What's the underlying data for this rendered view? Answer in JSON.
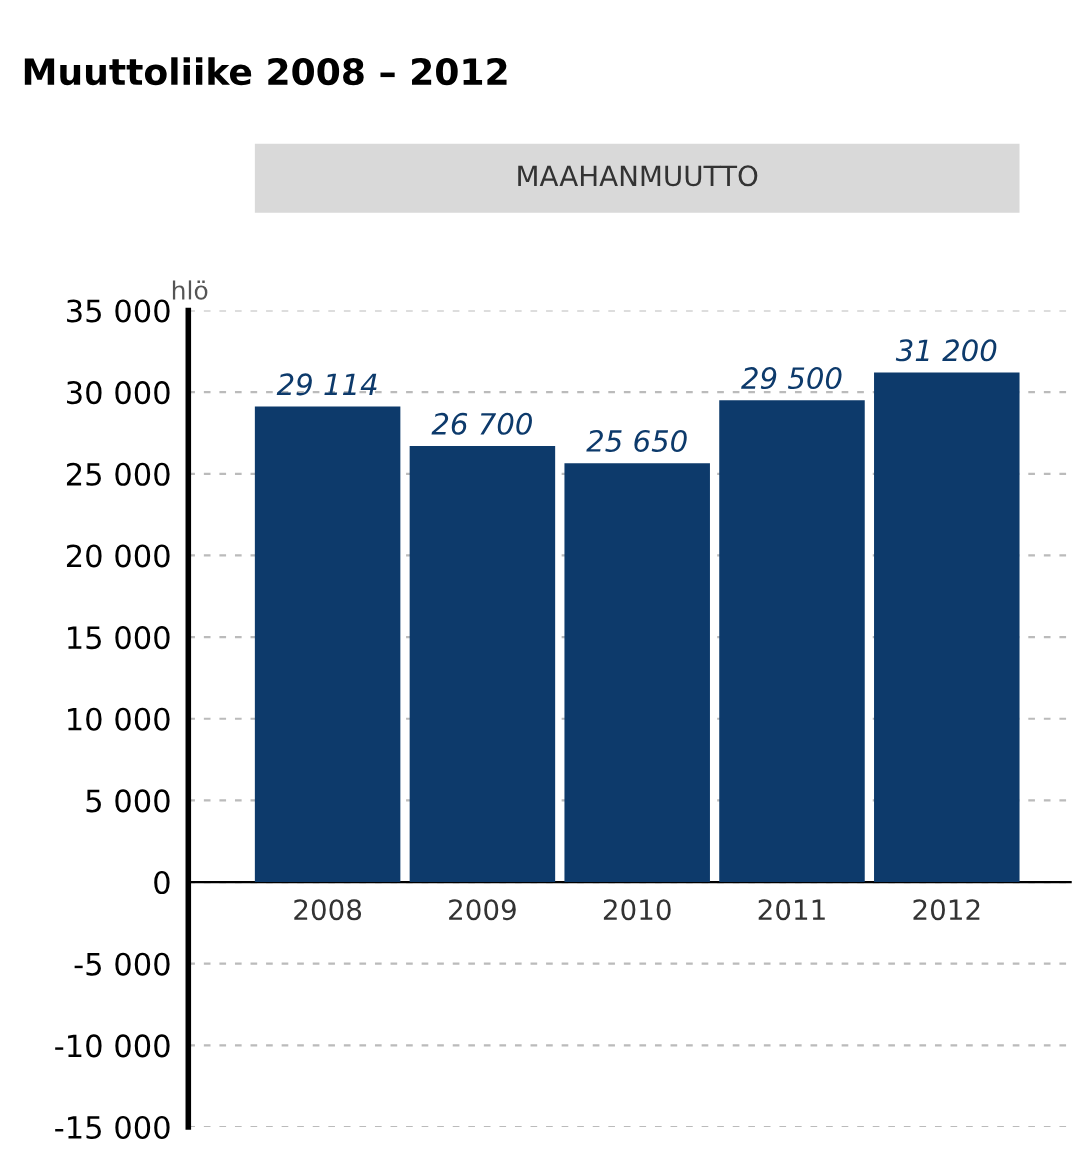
{
  "chart_data": {
    "type": "bar",
    "title": "Muuttoliike 2008 – 2012",
    "subtitle": "MAAHANMUUTTO",
    "ylabel": "hlö",
    "categories": [
      "2008",
      "2009",
      "2010",
      "2011",
      "2012"
    ],
    "values": [
      29114,
      26700,
      25650,
      29500,
      31200
    ],
    "value_labels": [
      "29 114",
      "26 700",
      "25 650",
      "29 500",
      "31 200"
    ],
    "color": "#0d3a6b",
    "ylim": [
      -15000,
      35000
    ],
    "yticks": [
      {
        "value": -15000,
        "label": "-15 000"
      },
      {
        "value": -10000,
        "label": "-10 000"
      },
      {
        "value": -5000,
        "label": "-5 000"
      },
      0,
      {
        "value": 5000,
        "label": "5 000"
      },
      {
        "value": 10000,
        "label": "10 000"
      },
      {
        "value": 15000,
        "label": "15 000"
      },
      {
        "value": 20000,
        "label": "20 000"
      },
      {
        "value": 25000,
        "label": "25 000"
      },
      {
        "value": 30000,
        "label": "30 000"
      },
      {
        "value": 35000,
        "label": "35 000"
      }
    ],
    "grid": "y"
  }
}
